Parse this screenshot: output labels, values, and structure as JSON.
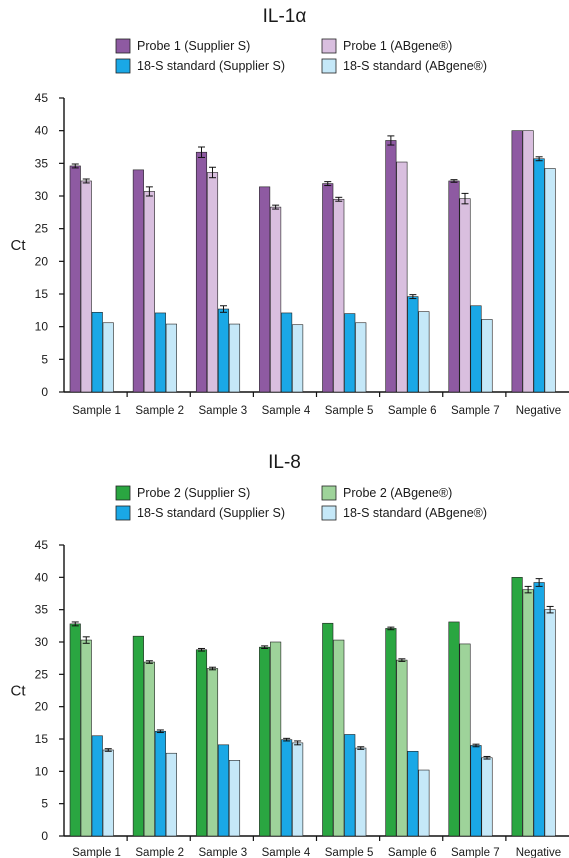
{
  "chart_data": [
    {
      "type": "bar",
      "title": "IL-1α",
      "ylabel": "Ct",
      "xlabel": "",
      "ylim": [
        0,
        45
      ],
      "yticks": [
        0,
        5,
        10,
        15,
        20,
        25,
        30,
        35,
        40,
        45
      ],
      "legend_placement": "top",
      "categories": [
        "Sample 1",
        "Sample 2",
        "Sample 3",
        "Sample 4",
        "Sample 5",
        "Sample 6",
        "Sample 7",
        "Negative"
      ],
      "series": [
        {
          "name": "Probe 1 (Supplier S)",
          "color": "#8e5aa2",
          "values": [
            34.6,
            34.0,
            36.7,
            31.4,
            31.9,
            38.5,
            32.3,
            40
          ],
          "errors": [
            0.3,
            0,
            0.8,
            0,
            0.3,
            0.7,
            0.2,
            0
          ]
        },
        {
          "name": "Probe 1 (ABgene®)",
          "color": "#d9bfdf",
          "values": [
            32.3,
            30.7,
            33.6,
            28.3,
            29.5,
            35.2,
            29.6,
            40
          ],
          "errors": [
            0.3,
            0.7,
            0.8,
            0.3,
            0.3,
            0,
            0.8,
            0
          ]
        },
        {
          "name": "18-S standard (Supplier S)",
          "color": "#1aa8e6",
          "values": [
            12.2,
            12.1,
            12.7,
            12.1,
            12.0,
            14.6,
            13.2,
            35.7
          ],
          "errors": [
            0,
            0,
            0.5,
            0,
            0,
            0.3,
            0,
            0.3
          ]
        },
        {
          "name": "18-S standard (ABgene®)",
          "color": "#c5e8f8",
          "values": [
            10.6,
            10.4,
            10.4,
            10.3,
            10.6,
            12.3,
            11.1,
            34.2
          ],
          "errors": [
            0,
            0,
            0,
            0,
            0,
            0,
            0,
            0
          ]
        }
      ]
    },
    {
      "type": "bar",
      "title": "IL-8",
      "ylabel": "Ct",
      "xlabel": "",
      "ylim": [
        0,
        45
      ],
      "yticks": [
        0,
        5,
        10,
        15,
        20,
        25,
        30,
        35,
        40,
        45
      ],
      "legend_placement": "top",
      "categories": [
        "Sample 1",
        "Sample 2",
        "Sample 3",
        "Sample 4",
        "Sample 5",
        "Sample 6",
        "Sample 7",
        "Negative"
      ],
      "series": [
        {
          "name": "Probe 2 (Supplier S)",
          "color": "#2aa641",
          "values": [
            32.8,
            30.9,
            28.8,
            29.2,
            32.9,
            32.1,
            33.1,
            40
          ],
          "errors": [
            0.3,
            0,
            0.2,
            0.2,
            0,
            0.2,
            0,
            0
          ]
        },
        {
          "name": "Probe 2 (ABgene®)",
          "color": "#9ed39a",
          "values": [
            30.3,
            26.9,
            25.9,
            30.0,
            30.3,
            27.2,
            29.7,
            38.1
          ],
          "errors": [
            0.5,
            0.2,
            0.2,
            0,
            0,
            0.2,
            0,
            0.5
          ]
        },
        {
          "name": "18-S standard (Supplier S)",
          "color": "#1aa8e6",
          "values": [
            15.5,
            16.2,
            14.1,
            14.9,
            15.7,
            13.1,
            14.0,
            39.2
          ],
          "errors": [
            0,
            0.2,
            0,
            0.2,
            0,
            0,
            0.2,
            0.6
          ]
        },
        {
          "name": "18-S standard (ABgene®)",
          "color": "#c5e8f8",
          "values": [
            13.3,
            12.8,
            11.7,
            14.4,
            13.6,
            10.2,
            12.1,
            35.0
          ],
          "errors": [
            0.2,
            0,
            0,
            0.3,
            0.2,
            0,
            0.2,
            0.5
          ]
        }
      ]
    }
  ]
}
